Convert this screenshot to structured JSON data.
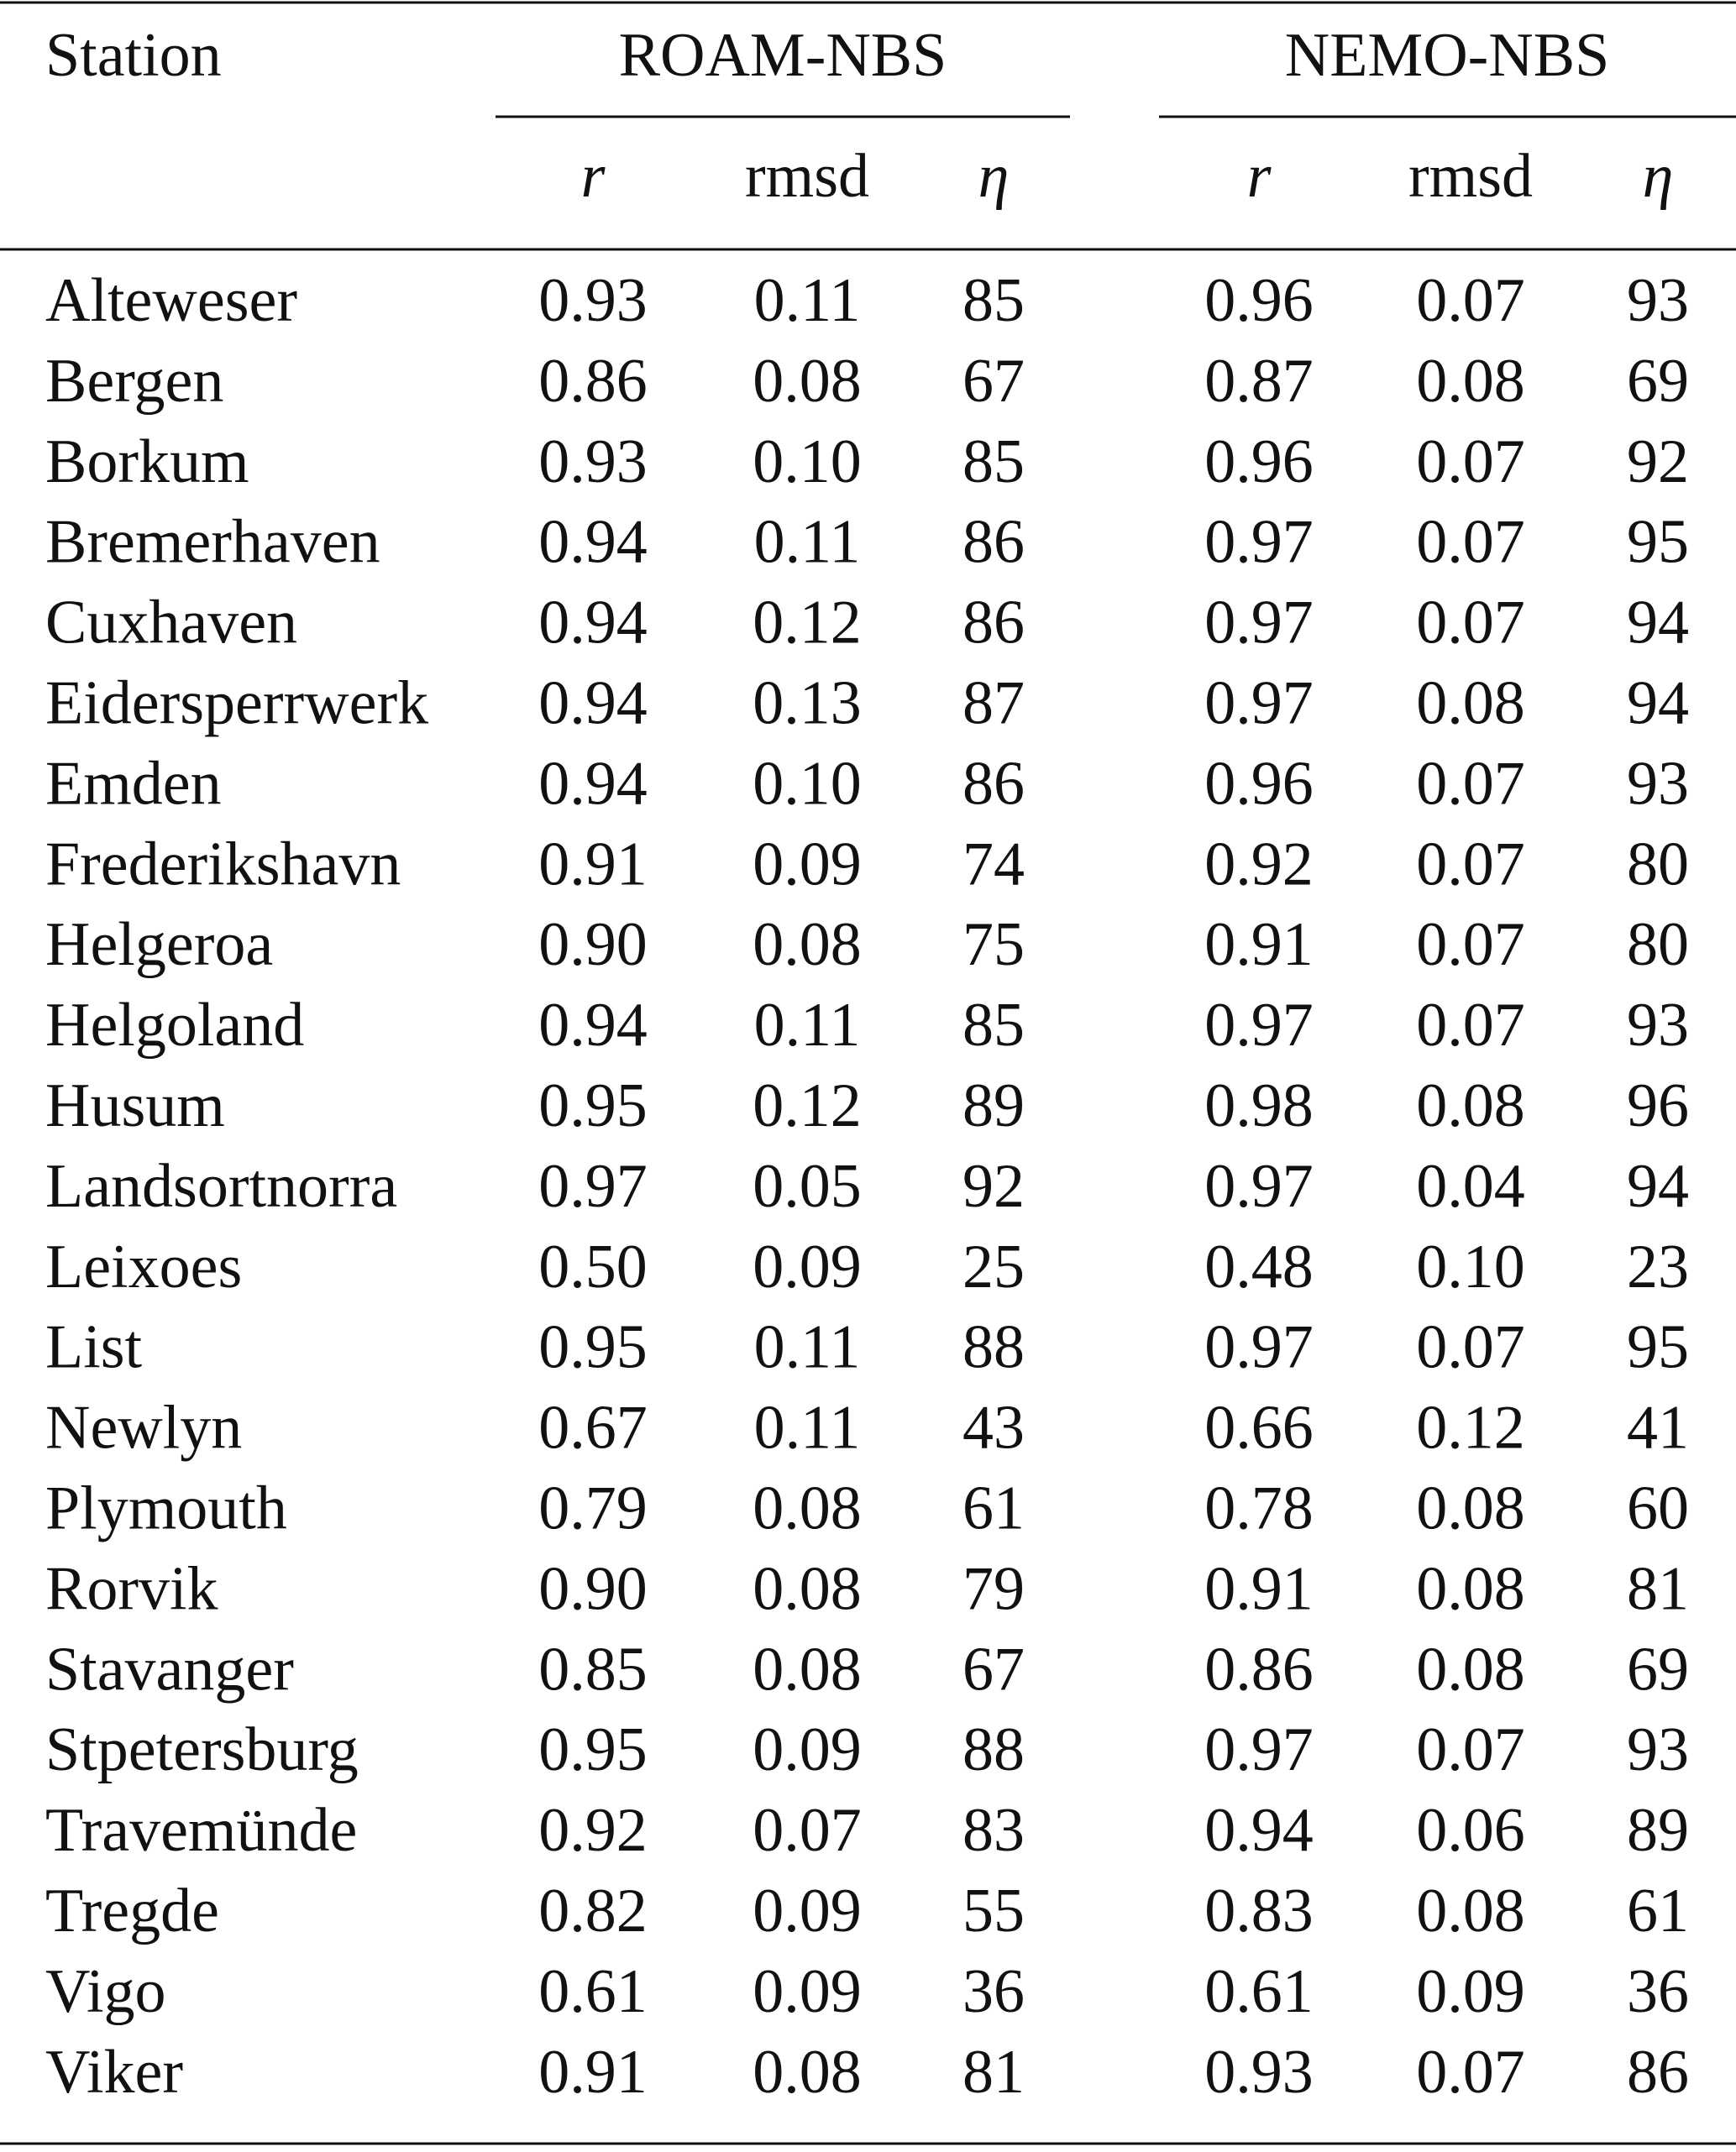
{
  "table": {
    "header": {
      "station": "Station",
      "groups": [
        "ROAM-NBS",
        "NEMO-NBS"
      ],
      "subheaders": [
        "r",
        "rmsd",
        "η",
        "r",
        "rmsd",
        "η"
      ]
    },
    "rows": [
      [
        "Alteweser",
        "0.93",
        "0.11",
        "85",
        "0.96",
        "0.07",
        "93"
      ],
      [
        "Bergen",
        "0.86",
        "0.08",
        "67",
        "0.87",
        "0.08",
        "69"
      ],
      [
        "Borkum",
        "0.93",
        "0.10",
        "85",
        "0.96",
        "0.07",
        "92"
      ],
      [
        "Bremerhaven",
        "0.94",
        "0.11",
        "86",
        "0.97",
        "0.07",
        "95"
      ],
      [
        "Cuxhaven",
        "0.94",
        "0.12",
        "86",
        "0.97",
        "0.07",
        "94"
      ],
      [
        "Eidersperrwerk",
        "0.94",
        "0.13",
        "87",
        "0.97",
        "0.08",
        "94"
      ],
      [
        "Emden",
        "0.94",
        "0.10",
        "86",
        "0.96",
        "0.07",
        "93"
      ],
      [
        "Frederikshavn",
        "0.91",
        "0.09",
        "74",
        "0.92",
        "0.07",
        "80"
      ],
      [
        "Helgeroa",
        "0.90",
        "0.08",
        "75",
        "0.91",
        "0.07",
        "80"
      ],
      [
        "Helgoland",
        "0.94",
        "0.11",
        "85",
        "0.97",
        "0.07",
        "93"
      ],
      [
        "Husum",
        "0.95",
        "0.12",
        "89",
        "0.98",
        "0.08",
        "96"
      ],
      [
        "Landsortnorra",
        "0.97",
        "0.05",
        "92",
        "0.97",
        "0.04",
        "94"
      ],
      [
        "Leixoes",
        "0.50",
        "0.09",
        "25",
        "0.48",
        "0.10",
        "23"
      ],
      [
        "List",
        "0.95",
        "0.11",
        "88",
        "0.97",
        "0.07",
        "95"
      ],
      [
        "Newlyn",
        "0.67",
        "0.11",
        "43",
        "0.66",
        "0.12",
        "41"
      ],
      [
        "Plymouth",
        "0.79",
        "0.08",
        "61",
        "0.78",
        "0.08",
        "60"
      ],
      [
        "Rorvik",
        "0.90",
        "0.08",
        "79",
        "0.91",
        "0.08",
        "81"
      ],
      [
        "Stavanger",
        "0.85",
        "0.08",
        "67",
        "0.86",
        "0.08",
        "69"
      ],
      [
        "Stpetersburg",
        "0.95",
        "0.09",
        "88",
        "0.97",
        "0.07",
        "93"
      ],
      [
        "Travemünde",
        "0.92",
        "0.07",
        "83",
        "0.94",
        "0.06",
        "89"
      ],
      [
        "Tregde",
        "0.82",
        "0.09",
        "55",
        "0.83",
        "0.08",
        "61"
      ],
      [
        "Vigo",
        "0.61",
        "0.09",
        "36",
        "0.61",
        "0.09",
        "36"
      ],
      [
        "Viker",
        "0.91",
        "0.08",
        "81",
        "0.93",
        "0.07",
        "86"
      ]
    ]
  }
}
